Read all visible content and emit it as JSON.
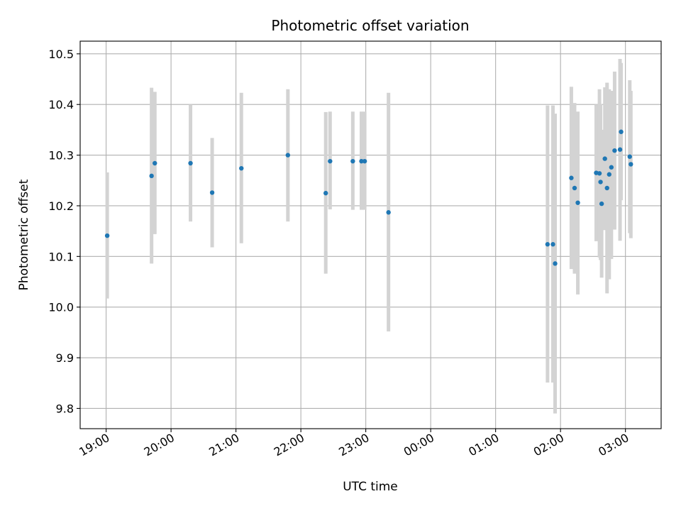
{
  "chart_data": {
    "type": "scatter",
    "title": "Photometric offset variation",
    "xlabel": "UTC time",
    "ylabel": "Photometric offset",
    "x_unit": "hours",
    "xlim": [
      "18:36",
      "03:33"
    ],
    "ylim": [
      9.76,
      10.525
    ],
    "grid": true,
    "x_ticks": [
      "19:00",
      "20:00",
      "21:00",
      "22:00",
      "23:00",
      "00:00",
      "01:00",
      "02:00",
      "03:00"
    ],
    "y_ticks": [
      "9.8",
      "9.9",
      "10.0",
      "10.1",
      "10.2",
      "10.3",
      "10.4",
      "10.5"
    ],
    "colors": {
      "point": "#1f77b4",
      "errorbar": "#d3d3d3",
      "grid": "#b0b0b0"
    },
    "points": [
      {
        "x": "19:01",
        "y": 10.141,
        "ymin": 10.017,
        "ymax": 10.266
      },
      {
        "x": "19:42",
        "y": 10.259,
        "ymin": 10.086,
        "ymax": 10.433
      },
      {
        "x": "19:45",
        "y": 10.284,
        "ymin": 10.144,
        "ymax": 10.425
      },
      {
        "x": "20:18",
        "y": 10.284,
        "ymin": 10.169,
        "ymax": 10.4
      },
      {
        "x": "20:38",
        "y": 10.226,
        "ymin": 10.118,
        "ymax": 10.334
      },
      {
        "x": "21:05",
        "y": 10.274,
        "ymin": 10.126,
        "ymax": 10.423
      },
      {
        "x": "21:48",
        "y": 10.3,
        "ymin": 10.169,
        "ymax": 10.43
      },
      {
        "x": "22:23",
        "y": 10.225,
        "ymin": 10.066,
        "ymax": 10.385
      },
      {
        "x": "22:27",
        "y": 10.288,
        "ymin": 10.193,
        "ymax": 10.386
      },
      {
        "x": "22:48",
        "y": 10.288,
        "ymin": 10.192,
        "ymax": 10.386
      },
      {
        "x": "22:56",
        "y": 10.288,
        "ymin": 10.192,
        "ymax": 10.386
      },
      {
        "x": "22:59",
        "y": 10.288,
        "ymin": 10.192,
        "ymax": 10.386
      },
      {
        "x": "23:21",
        "y": 10.187,
        "ymin": 9.952,
        "ymax": 10.423
      },
      {
        "x": "01:48",
        "y": 10.124,
        "ymin": 9.851,
        "ymax": 10.398
      },
      {
        "x": "01:53",
        "y": 10.124,
        "ymin": 9.851,
        "ymax": 10.398
      },
      {
        "x": "01:55",
        "y": 10.086,
        "ymin": 9.79,
        "ymax": 10.382
      },
      {
        "x": "02:10",
        "y": 10.255,
        "ymin": 10.075,
        "ymax": 10.435
      },
      {
        "x": "02:13",
        "y": 10.235,
        "ymin": 10.066,
        "ymax": 10.403
      },
      {
        "x": "02:16",
        "y": 10.206,
        "ymin": 10.025,
        "ymax": 10.386
      },
      {
        "x": "02:33",
        "y": 10.265,
        "ymin": 10.13,
        "ymax": 10.4
      },
      {
        "x": "02:36",
        "y": 10.264,
        "ymin": 10.098,
        "ymax": 10.43
      },
      {
        "x": "02:37",
        "y": 10.247,
        "ymin": 10.093,
        "ymax": 10.401
      },
      {
        "x": "02:38",
        "y": 10.204,
        "ymin": 10.058,
        "ymax": 10.35
      },
      {
        "x": "02:41",
        "y": 10.293,
        "ymin": 10.152,
        "ymax": 10.434
      },
      {
        "x": "02:43",
        "y": 10.235,
        "ymin": 10.027,
        "ymax": 10.443
      },
      {
        "x": "02:45",
        "y": 10.262,
        "ymin": 10.055,
        "ymax": 10.43
      },
      {
        "x": "02:47",
        "y": 10.276,
        "ymin": 10.095,
        "ymax": 10.427
      },
      {
        "x": "02:50",
        "y": 10.309,
        "ymin": 10.153,
        "ymax": 10.465
      },
      {
        "x": "02:55",
        "y": 10.311,
        "ymin": 10.131,
        "ymax": 10.49
      },
      {
        "x": "02:56",
        "y": 10.346,
        "ymin": 10.211,
        "ymax": 10.482
      },
      {
        "x": "03:04",
        "y": 10.297,
        "ymin": 10.146,
        "ymax": 10.448
      },
      {
        "x": "03:05",
        "y": 10.282,
        "ymin": 10.136,
        "ymax": 10.427
      }
    ]
  }
}
